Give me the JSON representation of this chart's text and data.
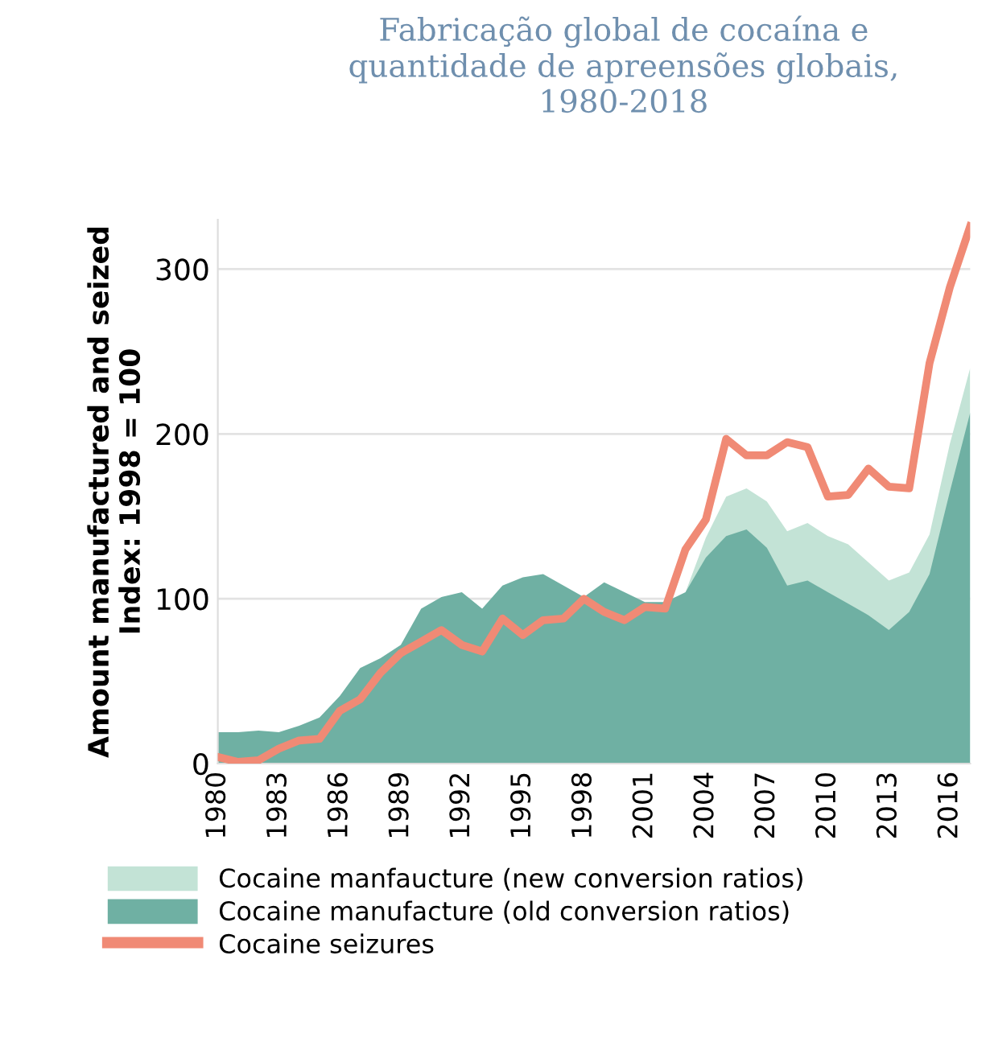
{
  "chart_data": {
    "type": "area",
    "title": "Fabricação global de cocaína e\nquantidade de apreensões globais,\n1980-2018",
    "ylabel": "Amount manufactured and seized\nIndex: 1998 = 100",
    "x": [
      1980,
      1981,
      1982,
      1983,
      1984,
      1985,
      1986,
      1987,
      1988,
      1989,
      1990,
      1991,
      1992,
      1993,
      1994,
      1995,
      1996,
      1997,
      1998,
      1999,
      2000,
      2001,
      2002,
      2003,
      2004,
      2005,
      2006,
      2007,
      2008,
      2009,
      2010,
      2011,
      2012,
      2013,
      2014,
      2015,
      2016,
      2017
    ],
    "series": [
      {
        "name": "Cocaine manfaucture (new conversion ratios)",
        "color": "#c3e3d6",
        "values": [
          null,
          null,
          null,
          null,
          null,
          null,
          null,
          null,
          null,
          null,
          null,
          null,
          null,
          null,
          null,
          null,
          null,
          null,
          null,
          null,
          null,
          null,
          null,
          104,
          137,
          162,
          167,
          159,
          141,
          146,
          138,
          133,
          122,
          111,
          116,
          139,
          194,
          240
        ]
      },
      {
        "name": "Cocaine manufacture (old conversion ratios)",
        "color": "#6fb0a3",
        "values": [
          19,
          19,
          20,
          19,
          23,
          28,
          41,
          58,
          64,
          72,
          94,
          101,
          104,
          94,
          108,
          113,
          115,
          108,
          101,
          110,
          104,
          98,
          98,
          104,
          125,
          138,
          142,
          131,
          108,
          111,
          104,
          97,
          90,
          81,
          92,
          115,
          165,
          213
        ]
      },
      {
        "name": "Cocaine seizures",
        "type": "line",
        "color": "#f08a75",
        "values": [
          4,
          1,
          2,
          9,
          14,
          15,
          32,
          39,
          55,
          67,
          74,
          81,
          72,
          68,
          88,
          78,
          87,
          88,
          100,
          92,
          87,
          95,
          94,
          130,
          148,
          197,
          187,
          187,
          195,
          192,
          162,
          163,
          179,
          168,
          167,
          243,
          289,
          326
        ]
      }
    ],
    "xlim": [
      1980,
      2017
    ],
    "xticks": [
      1980,
      1983,
      1986,
      1989,
      1992,
      1995,
      1998,
      2001,
      2004,
      2007,
      2010,
      2013,
      2016
    ],
    "ylim": [
      0,
      330
    ],
    "yticks": [
      0,
      100,
      200,
      300
    ],
    "grid": "y",
    "legend": "bottom"
  }
}
